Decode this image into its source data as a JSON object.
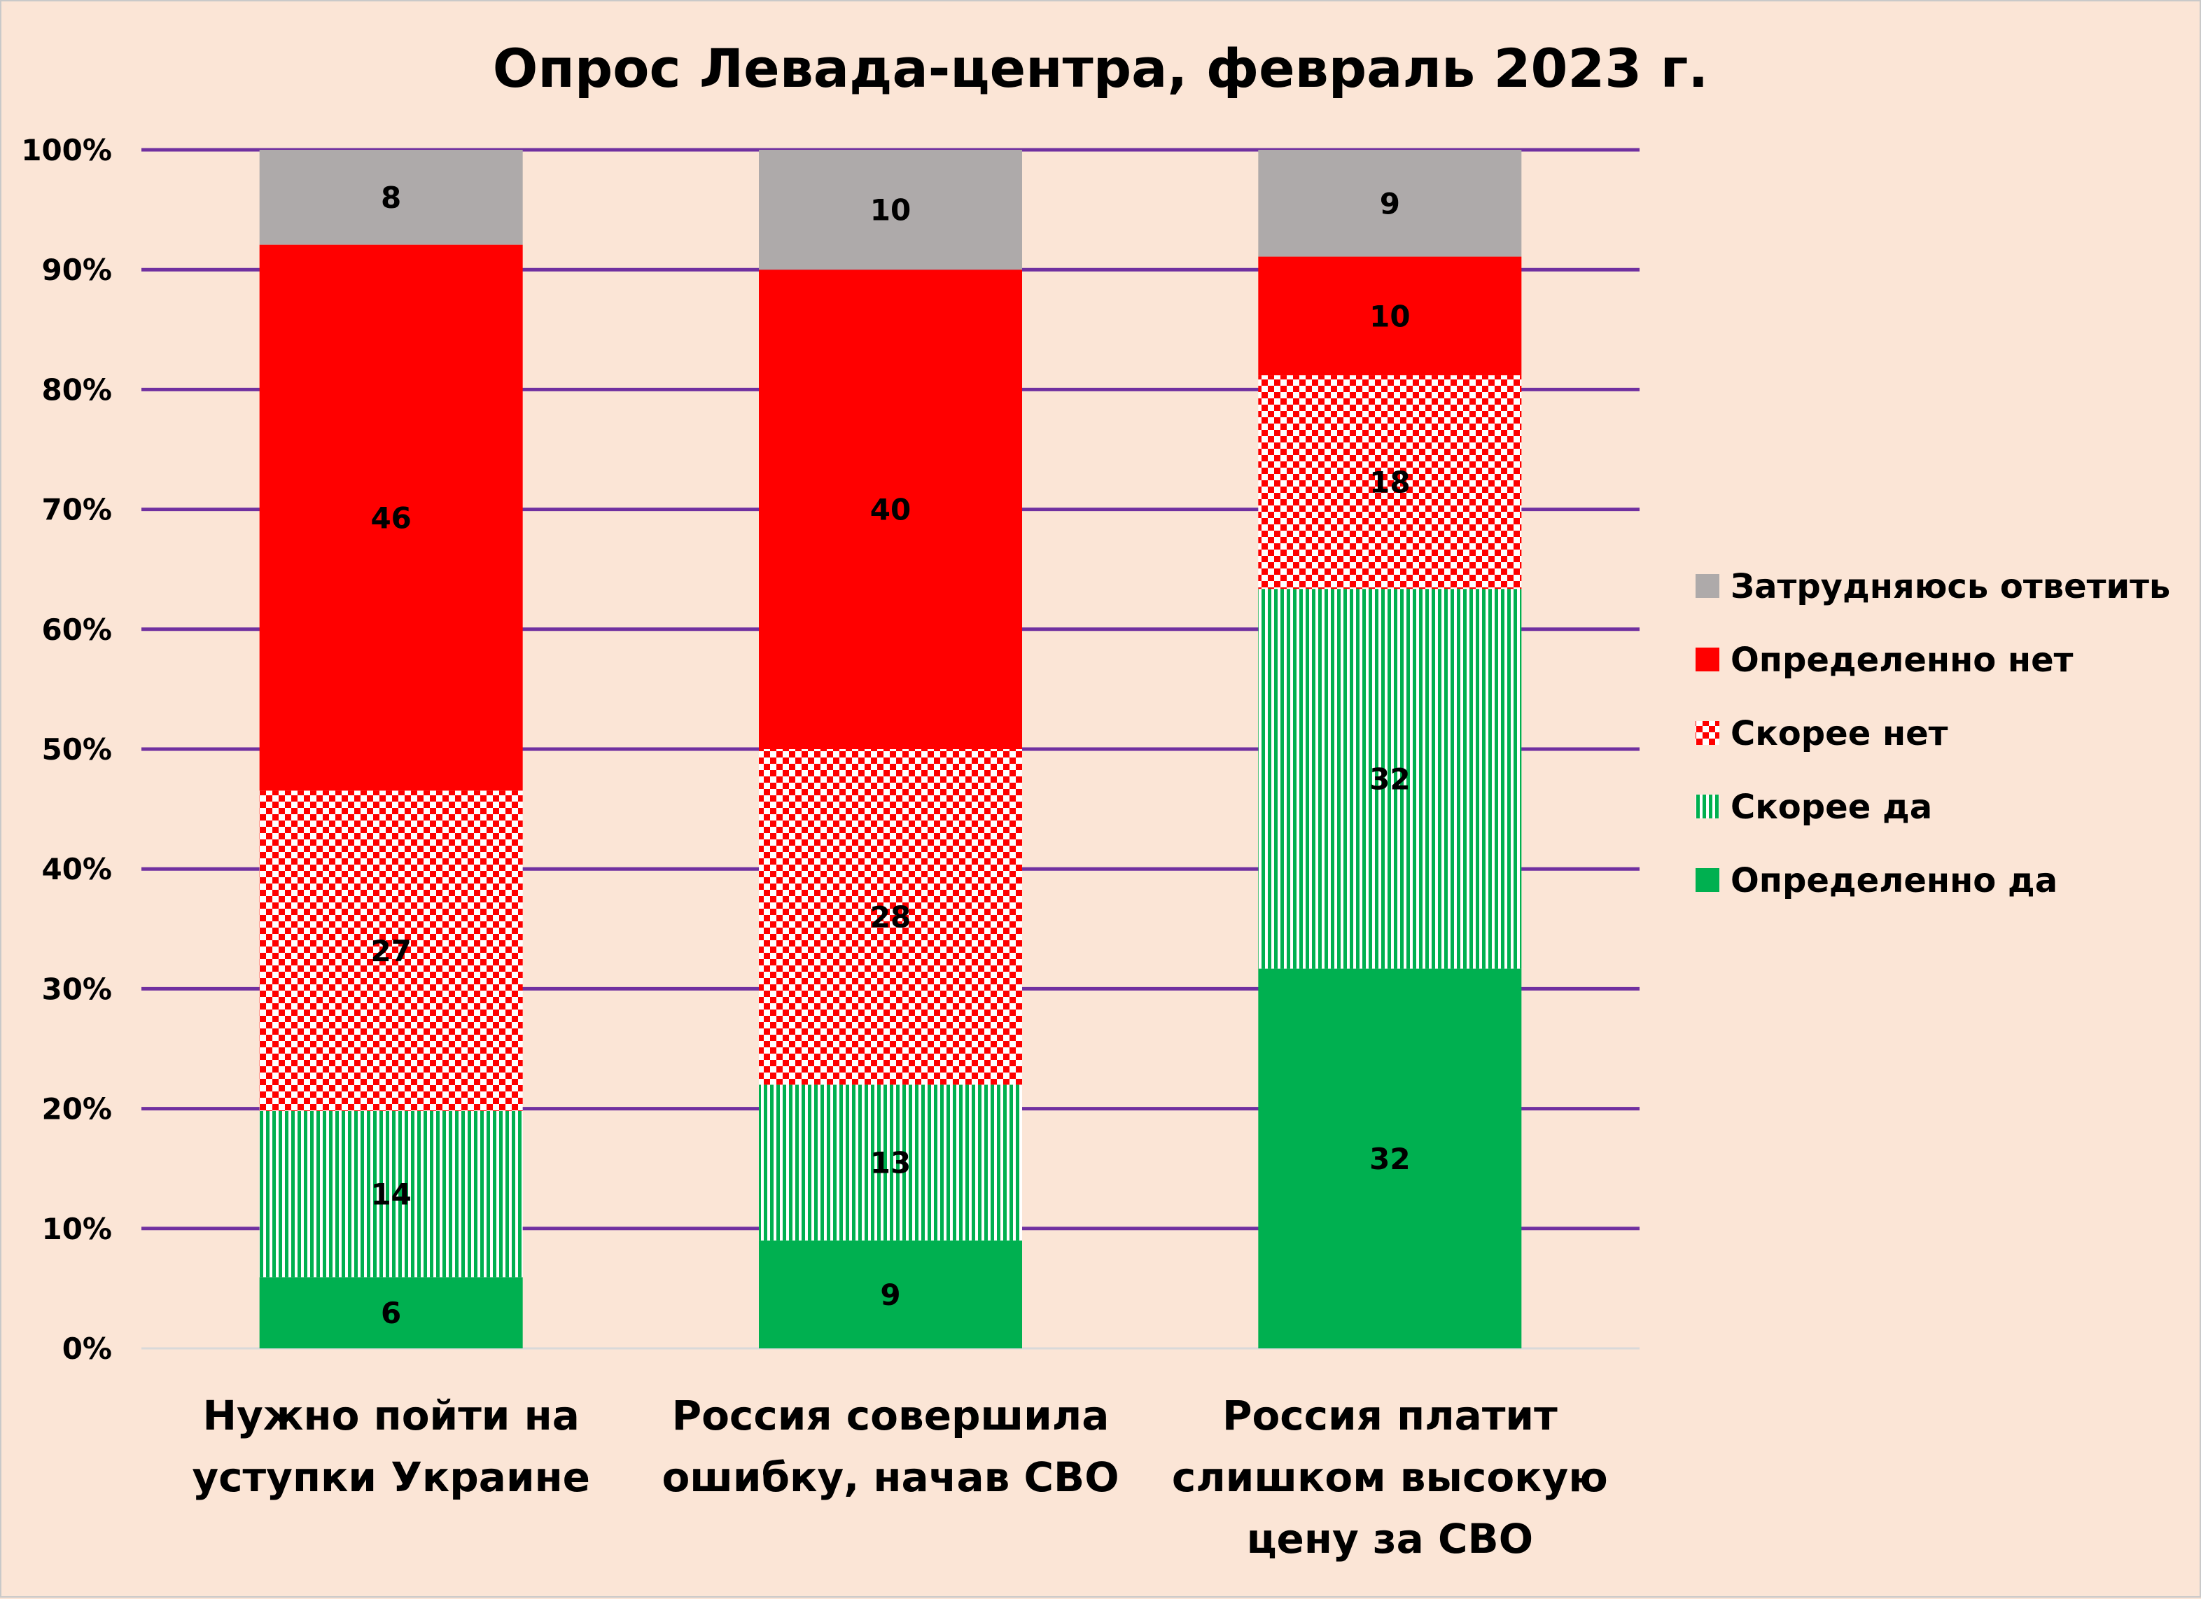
{
  "chart_data": {
    "type": "bar",
    "stacked": true,
    "normalized_100pct": true,
    "title": "Опрос Левада-центра, февраль 2023 г.",
    "xlabel": "",
    "ylabel": "",
    "ylim": [
      0,
      100
    ],
    "y_ticks": [
      "0%",
      "10%",
      "20%",
      "30%",
      "40%",
      "50%",
      "60%",
      "70%",
      "80%",
      "90%",
      "100%"
    ],
    "grid": true,
    "legend_position": "right",
    "categories": [
      [
        "Нужно пойти на",
        "уступки Украине"
      ],
      [
        "Россия совершила",
        "ошибку, начав СВО"
      ],
      [
        "Россия платит",
        "слишком высокую",
        "цену за СВО"
      ]
    ],
    "series": [
      {
        "name": "Определенно да",
        "color": "#00B050",
        "pattern": "solid",
        "values": [
          6,
          9,
          32
        ]
      },
      {
        "name": "Скорее да",
        "color": "#00B050",
        "pattern": "vertical-stripes",
        "values": [
          14,
          13,
          32
        ]
      },
      {
        "name": " Скорее нет",
        "color": "#FF0000",
        "pattern": "checker",
        "values": [
          27,
          28,
          18
        ]
      },
      {
        "name": "Определенно нет",
        "color": "#FF0000",
        "pattern": "solid",
        "values": [
          46,
          40,
          10
        ]
      },
      {
        "name": "Затрудняюсь ответить",
        "color": "#AEAAAA",
        "pattern": "solid",
        "values": [
          8,
          10,
          9
        ]
      }
    ],
    "legend_order": [
      4,
      3,
      2,
      1,
      0
    ],
    "gridline_color": "#7030A0"
  }
}
